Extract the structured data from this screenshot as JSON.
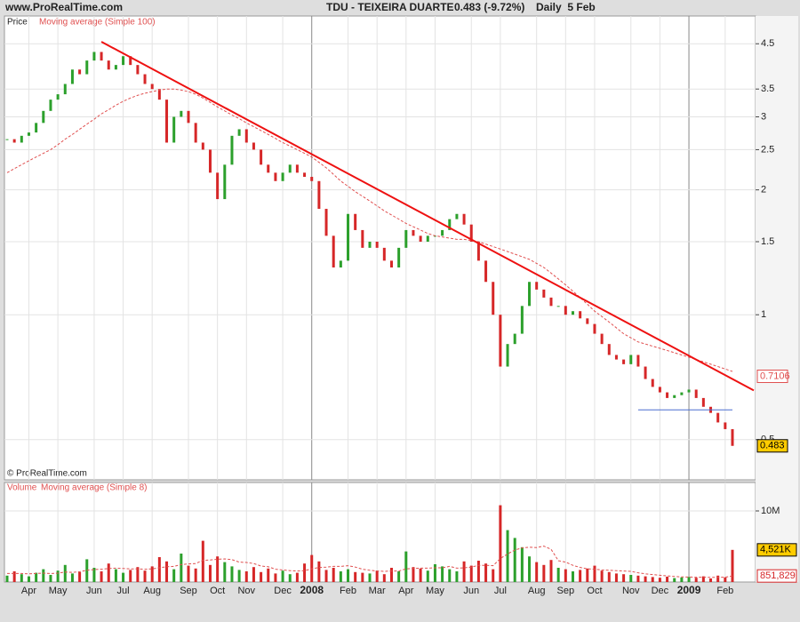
{
  "header": {
    "site": "www.ProRealTime.com",
    "symbol": "TDU - TEIXEIRA DUARTE",
    "quote": "0.483 (-9.72%)",
    "period": "Daily  5 Feb"
  },
  "chart_data": [
    {
      "type": "price",
      "log_scale": true,
      "grid": true,
      "ylim": [
        0.4,
        5.25
      ],
      "yticks": [
        4.5,
        3.5,
        3,
        2.5,
        2,
        1.5,
        1,
        0.5
      ],
      "series": [
        {
          "name": "Price",
          "up_color": "#2ca02c",
          "down_color": "#d62728",
          "values": [
            2.65,
            2.6,
            2.7,
            2.75,
            2.9,
            3.1,
            3.3,
            3.4,
            3.6,
            3.9,
            3.8,
            4.1,
            4.3,
            4.1,
            3.9,
            4.0,
            4.2,
            4.0,
            3.8,
            3.6,
            3.5,
            3.3,
            2.6,
            3.0,
            3.1,
            2.9,
            2.6,
            2.5,
            2.2,
            1.9,
            2.3,
            2.7,
            2.8,
            2.6,
            2.5,
            2.3,
            2.2,
            2.1,
            2.2,
            2.3,
            2.2,
            2.15,
            2.1,
            1.8,
            1.55,
            1.3,
            1.35,
            1.75,
            1.6,
            1.45,
            1.5,
            1.45,
            1.35,
            1.3,
            1.45,
            1.6,
            1.55,
            1.5,
            1.55,
            1.55,
            1.6,
            1.7,
            1.75,
            1.65,
            1.5,
            1.35,
            1.2,
            1.0,
            0.75,
            0.85,
            0.9,
            1.05,
            1.2,
            1.15,
            1.1,
            1.05,
            1.05,
            1.0,
            1.02,
            0.98,
            0.95,
            0.9,
            0.85,
            0.8,
            0.78,
            0.76,
            0.8,
            0.75,
            0.7,
            0.67,
            0.65,
            0.63,
            0.64,
            0.65,
            0.66,
            0.63,
            0.6,
            0.58,
            0.55,
            0.53,
            0.483
          ]
        },
        {
          "name": "Moving average (Simple 100)",
          "color": "#e05050",
          "values": [
            2.2,
            2.25,
            2.3,
            2.35,
            2.4,
            2.45,
            2.5,
            2.57,
            2.65,
            2.72,
            2.8,
            2.88,
            2.96,
            3.05,
            3.12,
            3.2,
            3.27,
            3.33,
            3.38,
            3.42,
            3.45,
            3.48,
            3.5,
            3.5,
            3.48,
            3.45,
            3.4,
            3.33,
            3.25,
            3.17,
            3.1,
            3.03,
            2.97,
            2.9,
            2.84,
            2.78,
            2.72,
            2.66,
            2.6,
            2.55,
            2.5,
            2.45,
            2.4,
            2.33,
            2.26,
            2.18,
            2.1,
            2.04,
            1.98,
            1.93,
            1.88,
            1.83,
            1.78,
            1.74,
            1.7,
            1.66,
            1.63,
            1.6,
            1.57,
            1.55,
            1.54,
            1.53,
            1.52,
            1.52,
            1.51,
            1.5,
            1.48,
            1.46,
            1.44,
            1.42,
            1.4,
            1.38,
            1.36,
            1.33,
            1.3,
            1.26,
            1.22,
            1.18,
            1.14,
            1.1,
            1.06,
            1.02,
            0.99,
            0.96,
            0.93,
            0.9,
            0.88,
            0.86,
            0.85,
            0.84,
            0.83,
            0.82,
            0.81,
            0.8,
            0.79,
            0.78,
            0.77,
            0.76,
            0.75,
            0.74,
            0.73
          ]
        }
      ],
      "trend_line": {
        "color": "#ee1111",
        "start": [
          13,
          4.55
        ],
        "end": [
          100,
          0.7
        ]
      },
      "support_line": {
        "color": "#4a6fd0",
        "start": [
          87,
          0.59
        ],
        "end": [
          100,
          0.59
        ]
      },
      "badges": [
        {
          "value": 0.7106,
          "color": "#e05050",
          "background": "#ffffff"
        },
        {
          "value": 0.483,
          "color": "#000000",
          "background": "#ffcc00"
        }
      ],
      "copyright": "© ProRealTime.com"
    },
    {
      "type": "volume",
      "grid": true,
      "ylim": [
        0,
        14000000
      ],
      "yticks": [
        {
          "value": 10000000,
          "label": "10M"
        }
      ],
      "categories": [
        null,
        null,
        null,
        "Apr",
        null,
        null,
        null,
        "May",
        null,
        null,
        null,
        null,
        "Jun",
        null,
        null,
        null,
        "Jul",
        null,
        null,
        null,
        "Aug",
        null,
        null,
        null,
        null,
        "Sep",
        null,
        null,
        null,
        "Oct",
        null,
        null,
        null,
        "Nov",
        null,
        null,
        null,
        null,
        "Dec",
        null,
        null,
        null,
        "2008",
        null,
        null,
        null,
        null,
        "Feb",
        null,
        null,
        null,
        "Mar",
        null,
        null,
        null,
        "Apr",
        null,
        null,
        null,
        "May",
        null,
        null,
        null,
        null,
        "Jun",
        null,
        null,
        null,
        "Jul",
        null,
        null,
        null,
        null,
        "Aug",
        null,
        null,
        null,
        "Sep",
        null,
        null,
        null,
        "Oct",
        null,
        null,
        null,
        null,
        "Nov",
        null,
        null,
        null,
        "Dec",
        null,
        null,
        null,
        "2009",
        null,
        null,
        null,
        null,
        "Feb",
        null
      ],
      "series": [
        {
          "name": "Volume",
          "values": [
            900000,
            1500000,
            1100000,
            800000,
            1300000,
            1800000,
            1000000,
            1600000,
            2400000,
            1200000,
            1400000,
            3200000,
            2000000,
            1500000,
            2600000,
            1800000,
            1300000,
            1700000,
            2100000,
            1600000,
            2200000,
            3500000,
            2900000,
            1800000,
            4000000,
            2300000,
            1900000,
            5800000,
            2400000,
            3600000,
            2800000,
            2200000,
            1700000,
            1500000,
            2100000,
            1400000,
            1900000,
            1200000,
            1600000,
            1100000,
            1300000,
            2600000,
            3800000,
            2900000,
            1700000,
            2000000,
            1500000,
            1800000,
            1400000,
            1300000,
            1200000,
            1600000,
            1100000,
            2000000,
            1500000,
            4300000,
            2100000,
            1900000,
            1600000,
            2500000,
            2200000,
            1800000,
            1500000,
            2900000,
            2300000,
            3000000,
            2600000,
            1800000,
            10800000,
            7300000,
            6200000,
            4900000,
            3600000,
            2800000,
            2400000,
            3100000,
            2000000,
            1800000,
            1500000,
            1700000,
            1900000,
            2300000,
            1600000,
            1400000,
            1200000,
            1100000,
            1000000,
            900000,
            800000,
            700000,
            600000,
            750000,
            550000,
            650000,
            700000,
            600000,
            800000,
            500000,
            900000,
            650000,
            4521000
          ]
        },
        {
          "name": "Moving average (Simple 8)",
          "color": "#e05050",
          "values": [
            1200000,
            1200000,
            1200000,
            1150000,
            1200000,
            1250000,
            1200000,
            1250000,
            1400000,
            1350000,
            1450000,
            1650000,
            1750000,
            1800000,
            1900000,
            1950000,
            1900000,
            1850000,
            1850000,
            1800000,
            1850000,
            2000000,
            2150000,
            2200000,
            2450000,
            2550000,
            2600000,
            3050000,
            3100000,
            3200000,
            3250000,
            3150000,
            2800000,
            2750000,
            2600000,
            2250000,
            2150000,
            1800000,
            1700000,
            1600000,
            1550000,
            1600000,
            1850000,
            2050000,
            2100000,
            2200000,
            2200000,
            2300000,
            2100000,
            1800000,
            1650000,
            1550000,
            1500000,
            1550000,
            1550000,
            1850000,
            1900000,
            1950000,
            1950000,
            2000000,
            2000000,
            2200000,
            1950000,
            2000000,
            2100000,
            2350000,
            2350000,
            2300000,
            3300000,
            3950000,
            4500000,
            4800000,
            4900000,
            4850000,
            5050000,
            4600000,
            3000000,
            2800000,
            2350000,
            2050000,
            1850000,
            1800000,
            1700000,
            1650000,
            1600000,
            1550000,
            1500000,
            1300000,
            1150000,
            1050000,
            950000,
            860000,
            780000,
            720000,
            700000,
            670000,
            680000,
            650000,
            670000,
            680000,
            851829
          ]
        }
      ],
      "badges": [
        {
          "value": 4521000,
          "label": "4,521K",
          "color": "#000000",
          "background": "#ffcc00"
        },
        {
          "value": 851829,
          "label": "851,829",
          "color": "#d62728",
          "background": "#ffffff"
        }
      ]
    }
  ]
}
